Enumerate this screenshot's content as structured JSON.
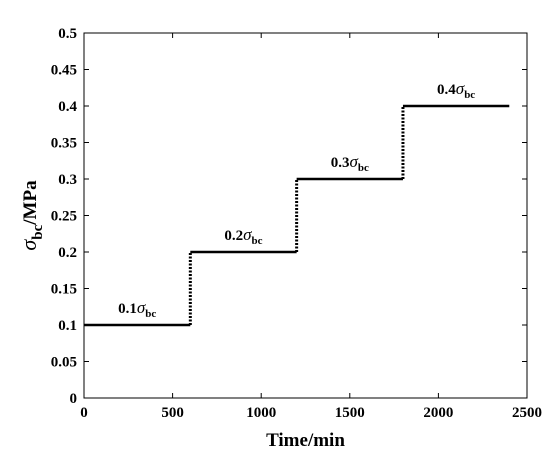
{
  "chart_data": {
    "type": "line",
    "title": "",
    "xlabel": "Time/min",
    "ylabel": {
      "symbol": "σ",
      "subscript": "bc",
      "suffix": "/MPa"
    },
    "xlim": [
      0,
      2500
    ],
    "ylim": [
      0,
      0.5
    ],
    "x_ticks": [
      0,
      500,
      1000,
      1500,
      2000,
      2500
    ],
    "x_tick_labels": [
      "0",
      "500",
      "1000",
      "1500",
      "2000",
      "2500"
    ],
    "y_ticks": [
      0,
      0.05,
      0.1,
      0.15,
      0.2,
      0.25,
      0.3,
      0.35,
      0.4,
      0.45,
      0.5
    ],
    "y_tick_labels": [
      "0",
      "0.05",
      "0.1",
      "0.15",
      "0.2",
      "0.25",
      "0.3",
      "0.35",
      "0.4",
      "0.45",
      "0.5"
    ],
    "grid": false,
    "series": [
      {
        "segments": [
          {
            "style": "solid",
            "x": [
              0,
              600
            ],
            "y": [
              0.1,
              0.1
            ]
          },
          {
            "style": "dotted",
            "x": [
              600,
              600
            ],
            "y": [
              0.1,
              0.2
            ]
          },
          {
            "style": "solid",
            "x": [
              600,
              1200
            ],
            "y": [
              0.2,
              0.2
            ]
          },
          {
            "style": "dotted",
            "x": [
              1200,
              1200
            ],
            "y": [
              0.2,
              0.3
            ]
          },
          {
            "style": "solid",
            "x": [
              1200,
              1800
            ],
            "y": [
              0.3,
              0.3
            ]
          },
          {
            "style": "dotted",
            "x": [
              1800,
              1800
            ],
            "y": [
              0.3,
              0.4
            ]
          },
          {
            "style": "solid",
            "x": [
              1800,
              2400
            ],
            "y": [
              0.4,
              0.4
            ]
          }
        ]
      }
    ],
    "annotations": [
      {
        "prefix": "0.1",
        "symbol": "σ",
        "subscript": "bc",
        "x": 300,
        "y": 0.1
      },
      {
        "prefix": "0.2",
        "symbol": "σ",
        "subscript": "bc",
        "x": 900,
        "y": 0.2
      },
      {
        "prefix": "0.3",
        "symbol": "σ",
        "subscript": "bc",
        "x": 1500,
        "y": 0.3
      },
      {
        "prefix": "0.4",
        "symbol": "σ",
        "subscript": "bc",
        "x": 2100,
        "y": 0.4
      }
    ],
    "colors": {
      "line": "#000000",
      "axes": "#000000",
      "background": "#ffffff"
    }
  }
}
